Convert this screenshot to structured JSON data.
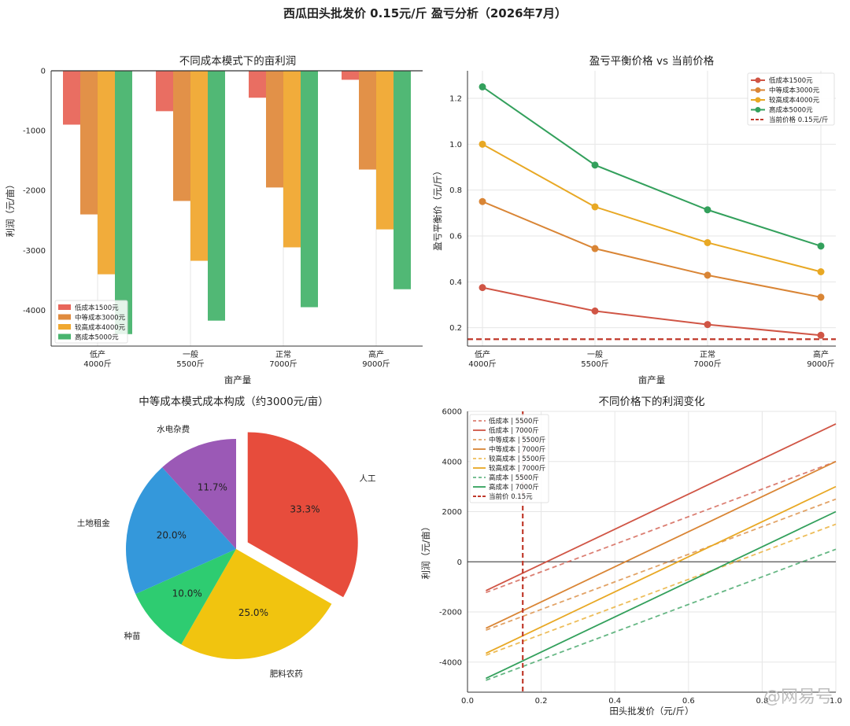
{
  "title": "西瓜田头批发价 0.15元/斤 盈亏分析（2026年7月）",
  "watermark": "@网易号",
  "colors": {
    "low": "#e8665a",
    "mid": "#e08b3e",
    "high": "#f0a830",
    "top": "#48b46e",
    "line_low": "#d05545",
    "line_mid": "#d98535",
    "line_high": "#e8a824",
    "line_top": "#33a05c",
    "price": "#c0392b"
  },
  "chart_data": [
    {
      "id": "bar",
      "type": "bar",
      "title": "不同成本模式下的亩利润",
      "xlabel": "亩产量",
      "ylabel": "利润（元/亩）",
      "categories": [
        "低产\n4000斤",
        "一般\n5500斤",
        "正常\n7000斤",
        "高产\n9000斤"
      ],
      "ylim": [
        -4600,
        0
      ],
      "yticks": [
        0,
        -1000,
        -2000,
        -3000,
        -4000
      ],
      "legend_position": "lower-left",
      "series": [
        {
          "name": "低成本1500元",
          "values": [
            -900,
            -675,
            -450,
            -150
          ]
        },
        {
          "name": "中等成本3000元",
          "values": [
            -2400,
            -2175,
            -1950,
            -1650
          ]
        },
        {
          "name": "较高成本4000元",
          "values": [
            -3400,
            -3175,
            -2950,
            -2650
          ]
        },
        {
          "name": "高成本5000元",
          "values": [
            -4400,
            -4175,
            -3950,
            -3650
          ]
        }
      ]
    },
    {
      "id": "breakeven",
      "type": "line",
      "title": "盈亏平衡价格 vs 当前价格",
      "xlabel": "亩产量",
      "ylabel": "盈亏平衡价（元/斤）",
      "x": [
        4000,
        5500,
        7000,
        9000
      ],
      "xticklabels": [
        "低产\n4000斤",
        "一般\n5500斤",
        "正常\n7000斤",
        "高产\n9000斤"
      ],
      "ylim": [
        0.12,
        1.32
      ],
      "yticks": [
        0.2,
        0.4,
        0.6,
        0.8,
        1.0,
        1.2
      ],
      "legend_position": "top-right",
      "series": [
        {
          "name": "低成本1500元",
          "values": [
            0.375,
            0.273,
            0.214,
            0.167
          ]
        },
        {
          "name": "中等成本3000元",
          "values": [
            0.75,
            0.545,
            0.429,
            0.333
          ]
        },
        {
          "name": "较高成本4000元",
          "values": [
            1.0,
            0.727,
            0.571,
            0.444
          ]
        },
        {
          "name": "高成本5000元",
          "values": [
            1.25,
            0.909,
            0.714,
            0.556
          ]
        }
      ],
      "reference_line": {
        "name": "当前价格 0.15元/斤",
        "value": 0.15
      }
    },
    {
      "id": "pie",
      "type": "pie",
      "title": "中等成本模式成本构成（约3000元/亩）",
      "slices": [
        {
          "label": "人工",
          "value": 33.3,
          "pct": "33.3%",
          "explode": true,
          "color": "#e74c3c"
        },
        {
          "label": "肥料农药",
          "value": 25.0,
          "pct": "25.0%",
          "explode": false,
          "color": "#f1c40f"
        },
        {
          "label": "种苗",
          "value": 10.0,
          "pct": "10.0%",
          "explode": false,
          "color": "#2ecc71"
        },
        {
          "label": "土地租金",
          "value": 20.0,
          "pct": "20.0%",
          "explode": false,
          "color": "#3498db"
        },
        {
          "label": "水电杂费",
          "value": 11.7,
          "pct": "11.7%",
          "explode": false,
          "color": "#9b59b6"
        }
      ]
    },
    {
      "id": "price",
      "type": "line",
      "title": "不同价格下的利润变化",
      "xlabel": "田头批发价（元/斤）",
      "ylabel": "利润（元/亩）",
      "xlim": [
        0.0,
        1.0
      ],
      "xticks": [
        0.0,
        0.2,
        0.4,
        0.6,
        0.8,
        1.0
      ],
      "ylim": [
        -5200,
        6000
      ],
      "yticks": [
        -4000,
        -2000,
        0,
        2000,
        4000,
        6000
      ],
      "legend_position": "top-left",
      "series": [
        {
          "name": "低成本 | 5500斤",
          "cost": 1500,
          "yield": 5500,
          "dashed": true,
          "x": [
            0.05,
            1.0
          ],
          "values": [
            -1225,
            4000
          ]
        },
        {
          "name": "低成本 | 7000斤",
          "cost": 1500,
          "yield": 7000,
          "dashed": false,
          "x": [
            0.05,
            1.0
          ],
          "values": [
            -1150,
            5500
          ]
        },
        {
          "name": "中等成本 | 5500斤",
          "cost": 3000,
          "yield": 5500,
          "dashed": true,
          "x": [
            0.05,
            1.0
          ],
          "values": [
            -2725,
            2500
          ]
        },
        {
          "name": "中等成本 | 7000斤",
          "cost": 3000,
          "yield": 7000,
          "dashed": false,
          "x": [
            0.05,
            1.0
          ],
          "values": [
            -2650,
            4000
          ]
        },
        {
          "name": "较高成本 | 5500斤",
          "cost": 4000,
          "yield": 5500,
          "dashed": true,
          "x": [
            0.05,
            1.0
          ],
          "values": [
            -3725,
            1500
          ]
        },
        {
          "name": "较高成本 | 7000斤",
          "cost": 4000,
          "yield": 7000,
          "dashed": false,
          "x": [
            0.05,
            1.0
          ],
          "values": [
            -3650,
            3000
          ]
        },
        {
          "name": "高成本 | 5500斤",
          "cost": 5000,
          "yield": 5500,
          "dashed": true,
          "x": [
            0.05,
            1.0
          ],
          "values": [
            -4725,
            500
          ]
        },
        {
          "name": "高成本 | 7000斤",
          "cost": 5000,
          "yield": 7000,
          "dashed": false,
          "x": [
            0.05,
            1.0
          ],
          "values": [
            -4650,
            2000
          ]
        }
      ],
      "reference_line": {
        "name": "当前价 0.15元",
        "value": 0.15
      }
    }
  ]
}
